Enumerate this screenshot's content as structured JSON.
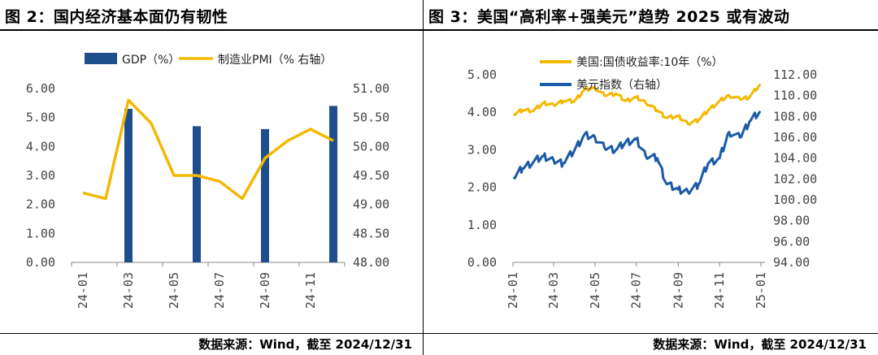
{
  "left": {
    "title": "图 2：国内经济基本面仍有韧性",
    "source": "数据来源：Wind，截至 2024/12/31"
  },
  "right": {
    "title": "图 3：美国“高利率+强美元”趋势 2025 或有波动",
    "source": "数据来源：Wind，截至 2024/12/31"
  },
  "colors": {
    "bar": "#1f4e8c",
    "gold": "#f5b800",
    "navy": "#1a5aa8"
  },
  "chart_data": [
    {
      "type": "bar",
      "legend": [
        "GDP（%）",
        "制造业PMI（% 右轴）"
      ],
      "categories": [
        "24-01",
        "24-02",
        "24-03",
        "24-04",
        "24-05",
        "24-06",
        "24-07",
        "24-08",
        "24-09",
        "24-10",
        "24-11",
        "24-12"
      ],
      "x_tick_labels": [
        "24-01",
        "24-03",
        "24-05",
        "24-07",
        "24-09",
        "24-11"
      ],
      "series": [
        {
          "name": "GDP（%）",
          "axis": "left",
          "type": "bar",
          "values": [
            null,
            null,
            5.3,
            null,
            null,
            4.7,
            null,
            null,
            4.6,
            null,
            null,
            5.4
          ]
        },
        {
          "name": "制造业PMI（% 右轴）",
          "axis": "right",
          "type": "line",
          "values": [
            49.2,
            49.1,
            50.8,
            50.4,
            49.5,
            49.5,
            49.4,
            49.1,
            49.8,
            50.1,
            50.3,
            50.1
          ]
        }
      ],
      "ylim_left": [
        0,
        6
      ],
      "ylim_right": [
        48,
        51
      ],
      "yticks_left": [
        "0.00",
        "1.00",
        "2.00",
        "3.00",
        "4.00",
        "5.00",
        "6.00"
      ],
      "yticks_right": [
        "48.00",
        "48.50",
        "49.00",
        "49.50",
        "50.00",
        "50.50",
        "51.00"
      ],
      "legend_position": "top"
    },
    {
      "type": "line",
      "legend": [
        "美国:国债收益率:10年（%）",
        "美元指数（右轴）"
      ],
      "x_tick_labels": [
        "24-01",
        "24-03",
        "24-05",
        "24-07",
        "24-09",
        "24-11",
        "25-01"
      ],
      "series": [
        {
          "name": "美国:国债收益率:10年（%）",
          "axis": "left",
          "x": [
            "2024-01-02",
            "2024-01-15",
            "2024-02-01",
            "2024-02-15",
            "2024-03-01",
            "2024-03-15",
            "2024-04-01",
            "2024-04-15",
            "2024-05-01",
            "2024-05-15",
            "2024-06-01",
            "2024-06-15",
            "2024-07-01",
            "2024-07-15",
            "2024-08-01",
            "2024-08-15",
            "2024-09-01",
            "2024-09-15",
            "2024-10-01",
            "2024-10-15",
            "2024-11-01",
            "2024-11-15",
            "2024-12-01",
            "2024-12-15",
            "2024-12-31"
          ],
          "values": [
            3.95,
            4.05,
            4.05,
            4.25,
            4.2,
            4.3,
            4.3,
            4.6,
            4.65,
            4.45,
            4.5,
            4.3,
            4.4,
            4.25,
            4.05,
            3.85,
            3.9,
            3.7,
            3.8,
            4.05,
            4.3,
            4.45,
            4.35,
            4.4,
            4.75
          ]
        },
        {
          "name": "美元指数（右轴）",
          "axis": "right",
          "x": [
            "2024-01-02",
            "2024-01-15",
            "2024-02-01",
            "2024-02-15",
            "2024-03-01",
            "2024-03-15",
            "2024-04-01",
            "2024-04-15",
            "2024-05-01",
            "2024-05-15",
            "2024-06-01",
            "2024-06-15",
            "2024-07-01",
            "2024-07-15",
            "2024-08-01",
            "2024-08-15",
            "2024-09-01",
            "2024-09-15",
            "2024-10-01",
            "2024-10-15",
            "2024-11-01",
            "2024-11-15",
            "2024-12-01",
            "2024-12-15",
            "2024-12-31"
          ],
          "values": [
            102.2,
            103.0,
            103.7,
            104.2,
            103.8,
            103.5,
            104.8,
            106.2,
            106.0,
            105.0,
            104.8,
            105.5,
            105.8,
            104.2,
            104.0,
            101.5,
            101.0,
            100.8,
            101.5,
            103.5,
            104.0,
            106.5,
            106.0,
            107.5,
            108.5
          ]
        }
      ],
      "ylim_left": [
        0,
        5
      ],
      "ylim_right": [
        94,
        112
      ],
      "yticks_left": [
        "0.00",
        "1.00",
        "2.00",
        "3.00",
        "4.00",
        "5.00"
      ],
      "yticks_right": [
        "94.00",
        "96.00",
        "98.00",
        "100.00",
        "102.00",
        "104.00",
        "106.00",
        "108.00",
        "110.00",
        "112.00"
      ],
      "legend_position": "top"
    }
  ]
}
